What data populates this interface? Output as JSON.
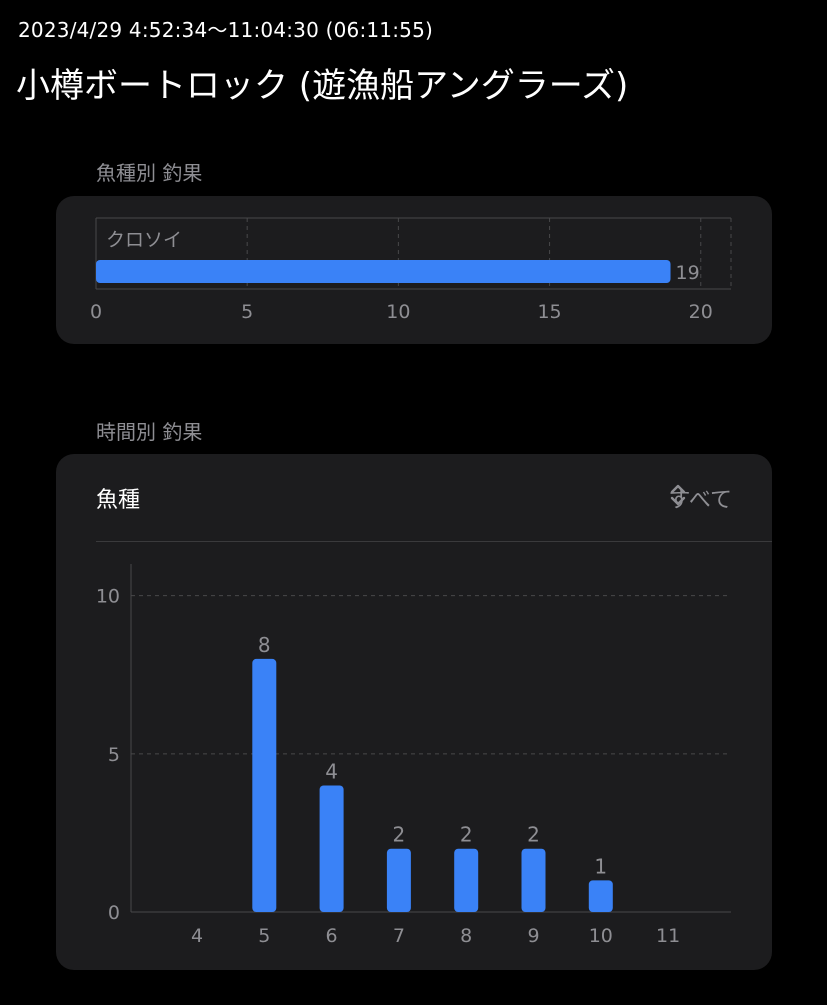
{
  "header": {
    "session_time": "2023/4/29 4:52:34〜11:04:30   (06:11:55)",
    "title": "小樽ボートロック (遊漁船アングラーズ)"
  },
  "species_section": {
    "label": "魚種別 釣果"
  },
  "hourly_section": {
    "label": "時間別 釣果",
    "filter_label": "魚種",
    "filter_value": "すべて"
  },
  "colors": {
    "background": "#000000",
    "card": "#1c1c1e",
    "bar": "#3a82f7",
    "grid": "#48484a",
    "axis_text": "#8e8e93",
    "text": "#ffffff"
  },
  "chart_data": [
    {
      "type": "bar",
      "orientation": "horizontal",
      "categories": [
        "クロソイ"
      ],
      "values": [
        19
      ],
      "xlim": [
        0,
        21
      ],
      "xticks": [
        0,
        5,
        10,
        15,
        20
      ],
      "grid": true,
      "data_labels": true
    },
    {
      "type": "bar",
      "orientation": "vertical",
      "categories": [
        "4",
        "5",
        "6",
        "7",
        "8",
        "9",
        "10",
        "11"
      ],
      "values": [
        0,
        8,
        4,
        2,
        2,
        2,
        1,
        0
      ],
      "ylim": [
        0,
        11
      ],
      "yticks": [
        0,
        5,
        10
      ],
      "grid": true,
      "data_labels": true
    }
  ]
}
